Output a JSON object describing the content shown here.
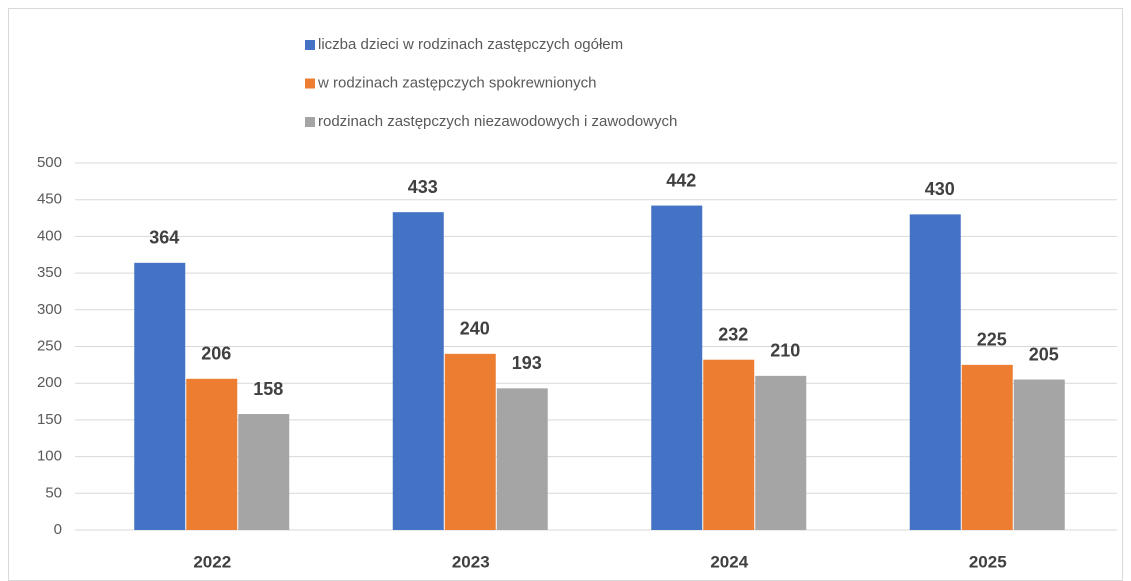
{
  "chart_data": {
    "type": "bar",
    "categories": [
      "2022",
      "2023",
      "2024",
      "2025"
    ],
    "series": [
      {
        "name": "liczba dzieci w rodzinach zastępczych ogółem",
        "color": "#4472c4",
        "values": [
          364,
          433,
          442,
          430
        ]
      },
      {
        "name": "w rodzinach zastępczych spokrewnionych",
        "color": "#ed7d31",
        "values": [
          206,
          240,
          232,
          225
        ]
      },
      {
        "name": "rodzinach zastępczych niezawodowych i zawodowych",
        "color": "#a5a5a5",
        "values": [
          158,
          193,
          210,
          205
        ]
      }
    ],
    "ylim": [
      0,
      500
    ],
    "yticks": [
      0,
      50,
      100,
      150,
      200,
      250,
      300,
      350,
      400,
      450,
      500
    ],
    "grid": true,
    "legend": "top"
  }
}
